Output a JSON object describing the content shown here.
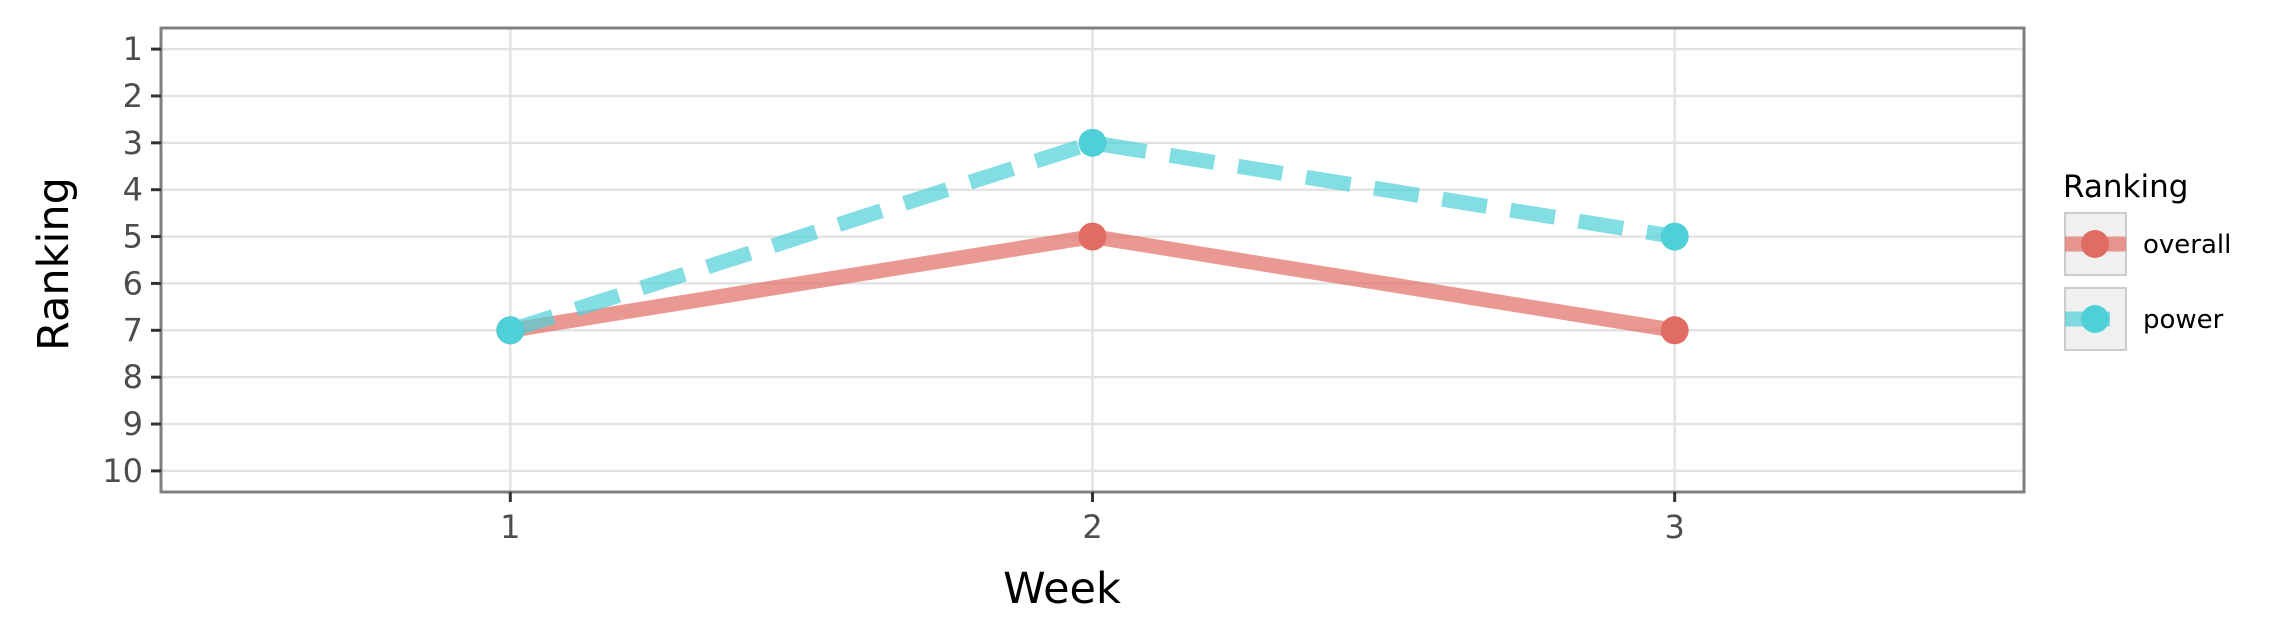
{
  "chart_data": {
    "type": "line",
    "xlabel": "Week",
    "ylabel": "Ranking",
    "x": [
      1,
      2,
      3
    ],
    "xlim": [
      0.4,
      3.6
    ],
    "ylim": [
      10.45,
      0.55
    ],
    "y_reversed": true,
    "x_ticks": [
      1,
      2,
      3
    ],
    "y_ticks": [
      1,
      2,
      3,
      4,
      5,
      6,
      7,
      8,
      9,
      10
    ],
    "grid": true,
    "legend": {
      "title": "Ranking",
      "placement": "right"
    },
    "series": [
      {
        "name": "overall",
        "values": [
          7,
          5,
          7
        ],
        "color": "#e06c64",
        "line_style": "solid"
      },
      {
        "name": "power",
        "values": [
          7,
          3,
          5
        ],
        "color": "#4fd0d9",
        "line_style": "dashed"
      }
    ]
  }
}
